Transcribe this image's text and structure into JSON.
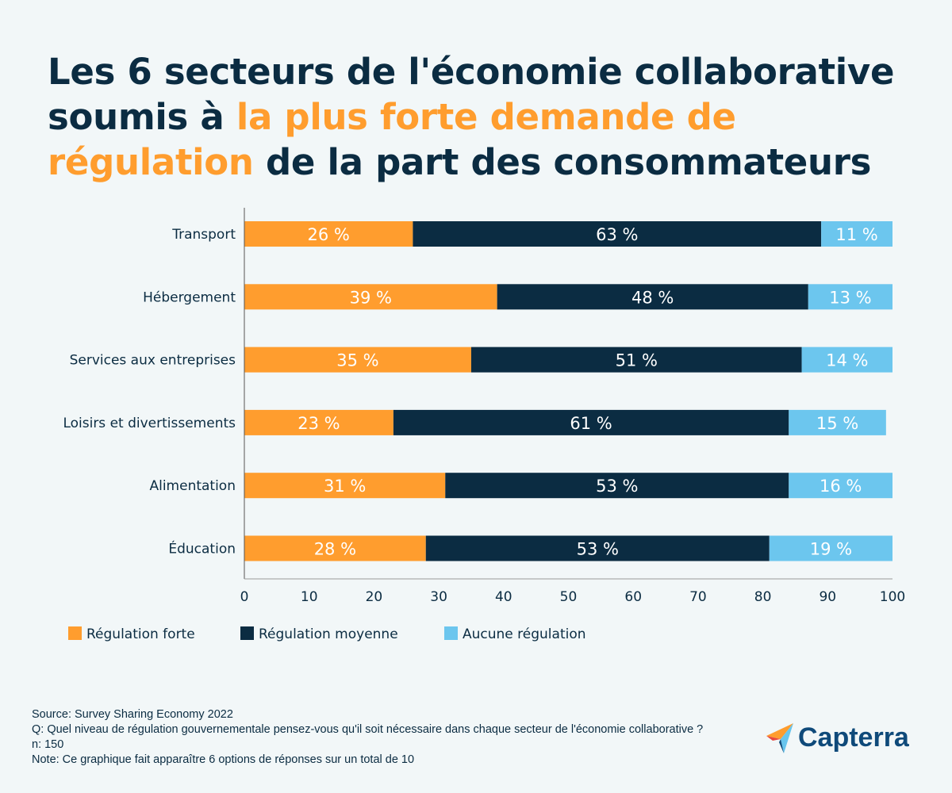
{
  "title": {
    "part1": "Les 6 secteurs de l'économie collaborative soumis à ",
    "highlight": "la plus forte demande de régulation",
    "part2": " de la part des consommateurs"
  },
  "chart_data": {
    "type": "bar",
    "orientation": "horizontal",
    "stacked": true,
    "categories": [
      "Transport",
      "Hébergement",
      "Services aux entreprises",
      "Loisirs et divertissements",
      "Alimentation",
      "Éducation"
    ],
    "series": [
      {
        "name": "Régulation forte",
        "color": "#ff9d2e",
        "values": [
          26,
          39,
          35,
          23,
          31,
          28
        ]
      },
      {
        "name": "Régulation moyenne",
        "color": "#0b2c42",
        "values": [
          63,
          48,
          51,
          61,
          53,
          53
        ]
      },
      {
        "name": "Aucune régulation",
        "color": "#6cc6ee",
        "values": [
          11,
          13,
          14,
          15,
          16,
          19
        ]
      }
    ],
    "value_suffix": " %",
    "xlim": [
      0,
      100
    ],
    "xticks": [
      0,
      10,
      20,
      30,
      40,
      50,
      60,
      70,
      80,
      90,
      100
    ],
    "grid": false,
    "legend_position": "bottom-left"
  },
  "footer": {
    "source": "Source: Survey Sharing Economy 2022",
    "question": "Q: Quel niveau de régulation gouvernementale pensez-vous qu'il soit nécessaire dans chaque secteur de l'économie collaborative ?",
    "n": "n: 150",
    "note": "Note: Ce graphique fait apparaître  6 options de réponses sur un total de 10"
  },
  "logo": {
    "text": "Capterra"
  }
}
